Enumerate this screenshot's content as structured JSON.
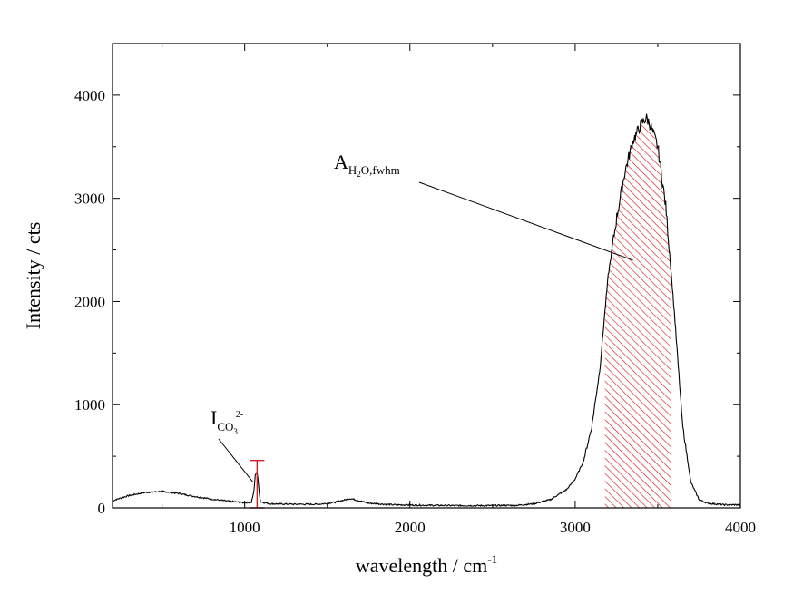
{
  "chart_data": {
    "type": "line",
    "xlabel": {
      "text": "wavelength / cm",
      "sup": "-1"
    },
    "ylabel": "Intensity / cts",
    "xlim": [
      200,
      4000
    ],
    "ylim": [
      0,
      4500
    ],
    "xticks": [
      1000,
      2000,
      3000,
      4000
    ],
    "yticks": [
      0,
      1000,
      2000,
      3000,
      4000
    ],
    "grid": false,
    "series": [
      {
        "color": "#000000",
        "points": [
          [
            200,
            70
          ],
          [
            300,
            120
          ],
          [
            400,
            150
          ],
          [
            500,
            160
          ],
          [
            600,
            140
          ],
          [
            700,
            110
          ],
          [
            800,
            85
          ],
          [
            900,
            65
          ],
          [
            1000,
            50
          ],
          [
            1040,
            55
          ],
          [
            1055,
            150
          ],
          [
            1065,
            330
          ],
          [
            1075,
            350
          ],
          [
            1085,
            200
          ],
          [
            1095,
            60
          ],
          [
            1150,
            40
          ],
          [
            1300,
            35
          ],
          [
            1450,
            35
          ],
          [
            1550,
            55
          ],
          [
            1600,
            75
          ],
          [
            1640,
            90
          ],
          [
            1680,
            75
          ],
          [
            1750,
            45
          ],
          [
            1900,
            30
          ],
          [
            2100,
            25
          ],
          [
            2300,
            22
          ],
          [
            2500,
            22
          ],
          [
            2650,
            25
          ],
          [
            2750,
            40
          ],
          [
            2850,
            80
          ],
          [
            2950,
            180
          ],
          [
            3000,
            280
          ],
          [
            3050,
            450
          ],
          [
            3100,
            780
          ],
          [
            3150,
            1350
          ],
          [
            3180,
            1900
          ],
          [
            3200,
            2250
          ],
          [
            3250,
            2800
          ],
          [
            3300,
            3250
          ],
          [
            3350,
            3560
          ],
          [
            3400,
            3720
          ],
          [
            3430,
            3780
          ],
          [
            3450,
            3730
          ],
          [
            3500,
            3500
          ],
          [
            3550,
            2900
          ],
          [
            3600,
            1900
          ],
          [
            3650,
            800
          ],
          [
            3700,
            250
          ],
          [
            3750,
            80
          ],
          [
            3800,
            45
          ],
          [
            3900,
            30
          ],
          [
            4000,
            30
          ]
        ]
      }
    ],
    "shaded_band": {
      "x_start": 3180,
      "x_end": 3580,
      "fill": "hatched",
      "color": "#d32020"
    },
    "marker": {
      "x": 1075,
      "y_bottom": 0,
      "y_top": 460,
      "color": "#d32020"
    },
    "annotations": [
      {
        "main": "A",
        "sub": "H",
        "sub2": "2",
        "sub3": "O,fwhm",
        "arrow_to": [
          3350,
          2400
        ]
      },
      {
        "main": "I",
        "sub": "CO",
        "sub2": "3",
        "sup": "2-",
        "arrow_to": [
          1050,
          250
        ]
      }
    ]
  }
}
